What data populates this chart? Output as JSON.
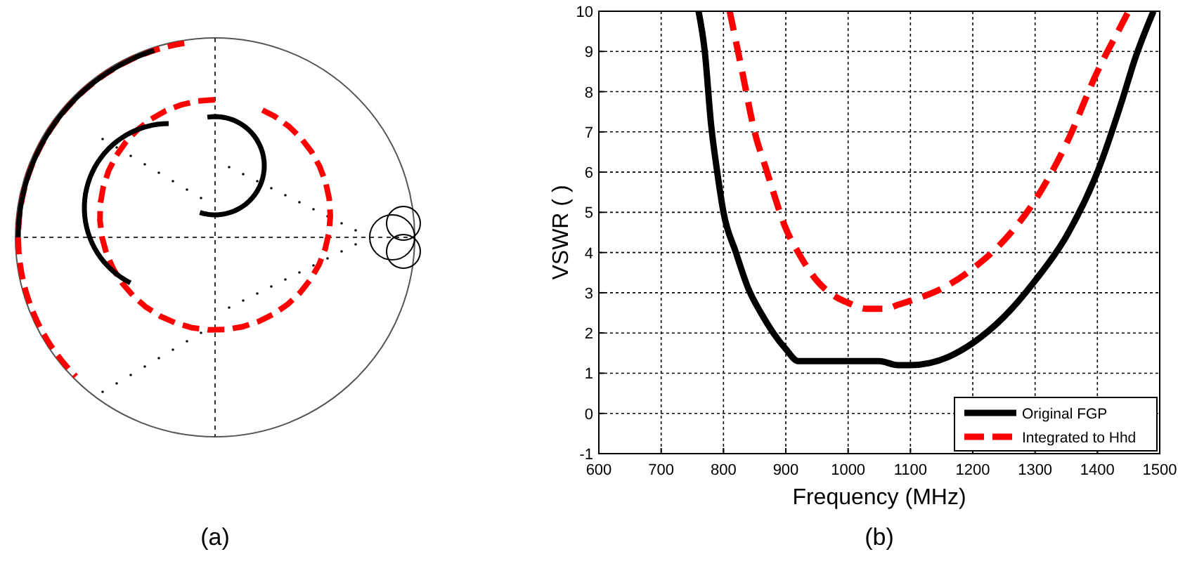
{
  "chart_data": [
    {
      "type": "other",
      "annotations": [
        "(a)"
      ]
    },
    {
      "type": "line",
      "xlabel": "Frequency (MHz)",
      "ylabel": "VSWR ( )",
      "annotations": [
        "(b)"
      ],
      "xlim": [
        600,
        1500
      ],
      "ylim": [
        -1,
        10
      ],
      "xticks": [
        600,
        700,
        800,
        900,
        1000,
        1100,
        1200,
        1300,
        1400,
        1500
      ],
      "yticks": [
        -1,
        0,
        1,
        2,
        3,
        4,
        5,
        6,
        7,
        8,
        9,
        10
      ],
      "grid": true,
      "legend": "bottom right",
      "series": [
        {
          "name": "Original FGP",
          "color": "#000000",
          "line_style": "solid",
          "x": [
            760,
            770,
            780,
            790,
            800,
            820,
            840,
            860,
            880,
            900,
            920,
            950,
            1000,
            1050,
            1080,
            1100,
            1130,
            1160,
            1200,
            1250,
            1300,
            1350,
            1400,
            1440,
            1460,
            1490
          ],
          "values": [
            10,
            9,
            7.2,
            6,
            5,
            4,
            3.1,
            2.5,
            2,
            1.6,
            1.3,
            1.3,
            1.3,
            1.3,
            1.2,
            1.2,
            1.25,
            1.4,
            1.75,
            2.4,
            3.3,
            4.4,
            6,
            7.8,
            8.8,
            10
          ]
        },
        {
          "name": "Integrated to Hhd",
          "color": "#ff0000",
          "line_style": "dashed",
          "x": [
            810,
            830,
            850,
            870,
            880,
            900,
            920,
            950,
            980,
            1000,
            1030,
            1060,
            1080,
            1100,
            1150,
            1200,
            1250,
            1300,
            1350,
            1400,
            1440,
            1450
          ],
          "values": [
            10,
            8.5,
            7,
            6,
            5.5,
            4.6,
            4,
            3.3,
            2.9,
            2.75,
            2.6,
            2.6,
            2.7,
            2.8,
            3.1,
            3.6,
            4.3,
            5.3,
            6.7,
            8.5,
            9.7,
            10
          ]
        }
      ]
    }
  ]
}
